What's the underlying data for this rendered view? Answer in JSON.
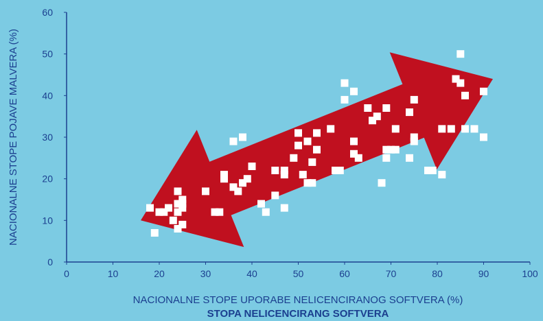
{
  "chart_data": {
    "type": "scatter",
    "title": "",
    "xlabel": "NACIONALNE STOPE UPORABE NELICENCIRANOG SOFTVERA (%)",
    "xlabel2": "STOPA NELICENCIRANG SOFTVERA",
    "ylabel": "NACIONALNE STOPE POJAVE MALVERA (%)",
    "xlim": [
      0,
      100
    ],
    "ylim": [
      0,
      60
    ],
    "xticks": [
      0,
      10,
      20,
      30,
      40,
      50,
      60,
      70,
      80,
      90,
      100
    ],
    "yticks": [
      0,
      10,
      20,
      30,
      40,
      50,
      60
    ],
    "grid": false,
    "arrow": {
      "type": "double-headed",
      "from": [
        16,
        10
      ],
      "to": [
        92,
        44
      ]
    },
    "colors": {
      "background": "#7ccbe3",
      "arrow": "#c0101f",
      "points": "#ffffff",
      "axis": "#1b3f8f"
    },
    "series": [
      {
        "x": [
          18,
          19,
          20,
          21,
          22,
          23,
          24,
          24,
          24,
          24,
          25,
          25,
          25,
          25,
          30,
          32,
          33,
          34,
          34,
          36,
          36,
          37,
          38,
          38,
          39,
          40,
          42,
          43,
          45,
          45,
          47,
          47,
          47,
          49,
          50,
          50,
          51,
          52,
          52,
          53,
          53,
          54,
          54,
          57,
          58,
          59,
          60,
          60,
          62,
          62,
          62,
          63,
          65,
          66,
          67,
          68,
          69,
          69,
          69,
          70,
          71,
          71,
          74,
          74,
          75,
          75,
          75,
          78,
          79,
          81,
          81,
          83,
          84,
          85,
          85,
          86,
          86,
          88,
          90,
          90
        ],
        "y": [
          13,
          7,
          12,
          12,
          13,
          10,
          17,
          14,
          12,
          8,
          15,
          14,
          13,
          9,
          17,
          12,
          12,
          21,
          20,
          18,
          29,
          17,
          30,
          19,
          20,
          23,
          14,
          12,
          22,
          16,
          22,
          21,
          13,
          25,
          31,
          28,
          21,
          29,
          19,
          24,
          19,
          31,
          27,
          32,
          22,
          22,
          43,
          39,
          41,
          29,
          26,
          25,
          37,
          34,
          35,
          19,
          37,
          27,
          25,
          27,
          32,
          27,
          36,
          25,
          39,
          30,
          29,
          22,
          22,
          32,
          21,
          32,
          44,
          43,
          50,
          40,
          32,
          32,
          41,
          30
        ]
      }
    ]
  }
}
